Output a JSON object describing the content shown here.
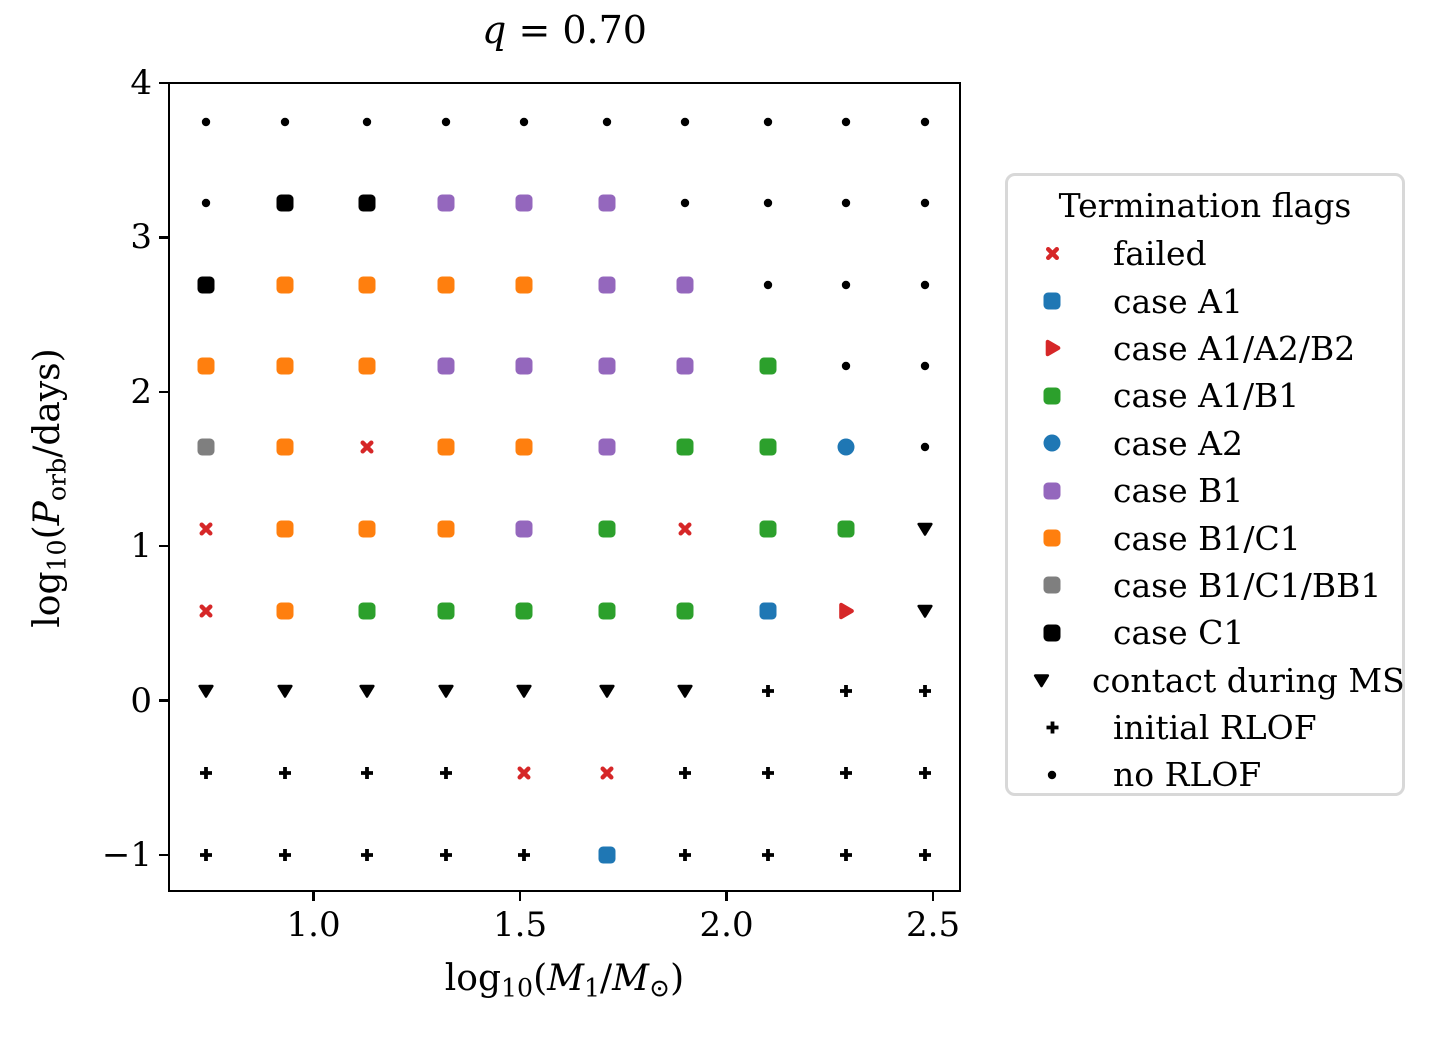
{
  "chart_data": {
    "type": "scatter",
    "title": "q = 0.70",
    "title_segments": [
      {
        "text": "q",
        "italic": true
      },
      {
        "text": " = 0.70"
      }
    ],
    "xlabel": "log10(M1/M☉)",
    "xlabel_segments": [
      {
        "text": "log"
      },
      {
        "text": "10",
        "script": "sub"
      },
      {
        "text": "("
      },
      {
        "text": "M",
        "italic": true
      },
      {
        "text": "1",
        "script": "sub"
      },
      {
        "text": "/"
      },
      {
        "text": "M",
        "italic": true
      },
      {
        "text": "⊙",
        "script": "sub"
      },
      {
        "text": ")"
      }
    ],
    "ylabel": "log10(Porb/days)",
    "ylabel_segments": [
      {
        "text": "log"
      },
      {
        "text": "10",
        "script": "sub"
      },
      {
        "text": "("
      },
      {
        "text": "P",
        "italic": true
      },
      {
        "text": "orb",
        "script": "sub"
      },
      {
        "text": "/days)"
      }
    ],
    "xlim": [
      0.65,
      2.57
    ],
    "ylim": [
      -1.24,
      4.0
    ],
    "grid": false,
    "legend_position": "right",
    "x_ticks": [
      1.0,
      1.5,
      2.0,
      2.5
    ],
    "x_tick_labels": [
      "1.0",
      "1.5",
      "2.0",
      "2.5"
    ],
    "y_ticks": [
      4,
      3,
      2,
      1,
      0,
      -1
    ],
    "y_tick_labels": [
      "4",
      "3",
      "2",
      "1",
      "0",
      "−1"
    ],
    "x_values": [
      0.74,
      0.93,
      1.13,
      1.32,
      1.51,
      1.71,
      1.9,
      2.1,
      2.29,
      2.48
    ],
    "y_values": [
      3.75,
      3.22,
      2.69,
      2.17,
      1.64,
      1.11,
      0.58,
      0.06,
      -0.47,
      -1.0
    ],
    "flags_grid": [
      [
        "noRLOF",
        "noRLOF",
        "noRLOF",
        "noRLOF",
        "noRLOF",
        "noRLOF",
        "noRLOF",
        "noRLOF",
        "noRLOF",
        "noRLOF"
      ],
      [
        "noRLOF",
        "C1",
        "C1",
        "B1",
        "B1",
        "B1",
        "noRLOF",
        "noRLOF",
        "noRLOF",
        "noRLOF"
      ],
      [
        "C1",
        "B1C1",
        "B1C1",
        "B1C1",
        "B1C1",
        "B1",
        "B1",
        "noRLOF",
        "noRLOF",
        "noRLOF"
      ],
      [
        "B1C1",
        "B1C1",
        "B1C1",
        "B1",
        "B1",
        "B1",
        "B1",
        "A1B1",
        "noRLOF",
        "noRLOF"
      ],
      [
        "B1C1BB1",
        "B1C1",
        "failed",
        "B1C1",
        "B1C1",
        "B1",
        "A1B1",
        "A1B1",
        "A2",
        "noRLOF"
      ],
      [
        "failed",
        "B1C1",
        "B1C1",
        "B1C1",
        "B1",
        "A1B1",
        "failed",
        "A1B1",
        "A1B1",
        "contactMS"
      ],
      [
        "failed",
        "B1C1",
        "A1B1",
        "A1B1",
        "A1B1",
        "A1B1",
        "A1B1",
        "A1",
        "A1A2B2",
        "contactMS"
      ],
      [
        "contactMS",
        "contactMS",
        "contactMS",
        "contactMS",
        "contactMS",
        "contactMS",
        "contactMS",
        "initRLOF",
        "initRLOF",
        "initRLOF"
      ],
      [
        "initRLOF",
        "initRLOF",
        "initRLOF",
        "initRLOF",
        "failed",
        "failed",
        "initRLOF",
        "initRLOF",
        "initRLOF",
        "initRLOF"
      ],
      [
        "initRLOF",
        "initRLOF",
        "initRLOF",
        "initRLOF",
        "initRLOF",
        "A1",
        "initRLOF",
        "initRLOF",
        "initRLOF",
        "initRLOF"
      ]
    ],
    "legend": {
      "title": "Termination flags",
      "entries": [
        {
          "key": "failed",
          "label": "failed",
          "marker": "x",
          "color": "#d62728"
        },
        {
          "key": "A1",
          "label": "case A1",
          "marker": "square",
          "color": "#1f77b4"
        },
        {
          "key": "A1A2B2",
          "label": "case A1/A2/B2",
          "marker": "triangle-right",
          "color": "#d62728"
        },
        {
          "key": "A1B1",
          "label": "case A1/B1",
          "marker": "square",
          "color": "#2ca02c"
        },
        {
          "key": "A2",
          "label": "case A2",
          "marker": "circle",
          "color": "#1f77b4"
        },
        {
          "key": "B1",
          "label": "case B1",
          "marker": "square",
          "color": "#9467bd"
        },
        {
          "key": "B1C1",
          "label": "case B1/C1",
          "marker": "square",
          "color": "#ff7f0e"
        },
        {
          "key": "B1C1BB1",
          "label": "case B1/C1/BB1",
          "marker": "square",
          "color": "#7f7f7f"
        },
        {
          "key": "C1",
          "label": "case C1",
          "marker": "square",
          "color": "#000000"
        },
        {
          "key": "contactMS",
          "label": "contact during MS",
          "marker": "triangle-down",
          "color": "#000000"
        },
        {
          "key": "initRLOF",
          "label": "initial RLOF",
          "marker": "plus",
          "color": "#000000"
        },
        {
          "key": "noRLOF",
          "label": "no RLOF",
          "marker": "dot",
          "color": "#000000"
        }
      ]
    },
    "colors": {
      "blue": "#1f77b4",
      "orange": "#ff7f0e",
      "green": "#2ca02c",
      "red": "#d62728",
      "purple": "#9467bd",
      "gray": "#7f7f7f",
      "black": "#000000",
      "legend_border": "#d8d8d8"
    }
  }
}
